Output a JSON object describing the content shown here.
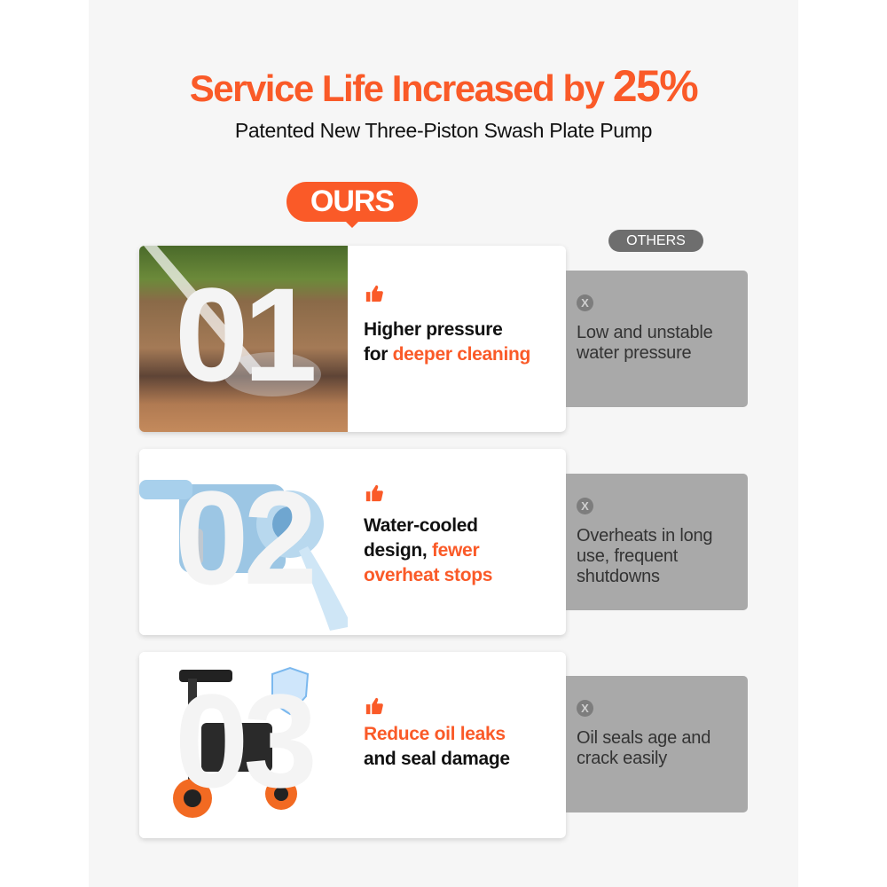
{
  "colors": {
    "accent": "#fa5a28",
    "others_bg": "#a9a9a9",
    "others_badge": "#6e6e6e"
  },
  "header": {
    "title": "Service Life Increased by",
    "title_highlight": "25%",
    "subtitle": "Patented New Three-Piston Swash Plate Pump"
  },
  "labels": {
    "ours": "OURS",
    "others": "OTHERS"
  },
  "rows": [
    {
      "number": "01",
      "icon": "thumbs-up-icon",
      "image": "pressure-washing-dirt-photo",
      "ours_line1": "Higher pressure",
      "ours_line2_plain": "for ",
      "ours_line2_highlight": "deeper cleaning",
      "others_icon": "x-icon",
      "others_text": "Low and unstable water pressure"
    },
    {
      "number": "02",
      "icon": "thumbs-up-icon",
      "image": "water-cooled-pump-render",
      "ours_line1": "Water-cooled",
      "ours_line2_plain": "design, ",
      "ours_line2_highlight": "fewer",
      "ours_line3_highlight": "overheat stops",
      "others_icon": "x-icon",
      "others_text": "Overheats in long use, frequent shutdowns"
    },
    {
      "number": "03",
      "icon": "thumbs-up-icon",
      "image": "pressure-washer-with-shield",
      "ours_line1_highlight": "Reduce oil leaks",
      "ours_line2_plain": "and seal damage",
      "others_icon": "x-icon",
      "others_text": "Oil seals age and crack easily"
    }
  ]
}
